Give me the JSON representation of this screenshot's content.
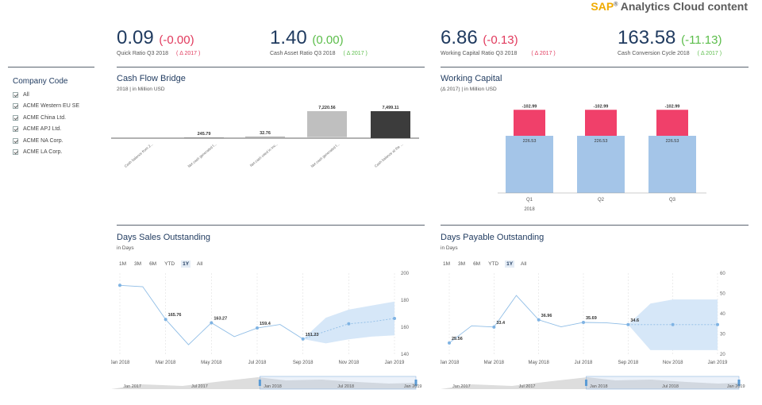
{
  "brand": {
    "sap": "SAP",
    "reg": "®",
    "rest": " Analytics Cloud content"
  },
  "kpis": {
    "quick_ratio": {
      "value": "0.09",
      "delta": "(-0.00)",
      "label": "Quick Ratio Q3 2018",
      "compare": "( Δ 2017 )"
    },
    "cash_asset_ratio": {
      "value": "1.40",
      "delta": "(0.00)",
      "label": "Cash Asset Ratio Q3 2018",
      "compare": "( Δ 2017 )"
    },
    "working_capital_ratio": {
      "value": "6.86",
      "delta": "(-0.13)",
      "label": "Working Capital Ratio Q3 2018",
      "compare": "( Δ 2017 )"
    },
    "cash_conversion_cycle": {
      "value": "163.58",
      "delta": "(-11.13)",
      "label": "Cash Conversion Cycle 2018",
      "compare": "( Δ 2017 )"
    }
  },
  "filter": {
    "title": "Company Code",
    "items": [
      "All",
      "ACME Western EU SE",
      "ACME China Ltd.",
      "ACME APJ Ltd.",
      "ACME NA Corp.",
      "ACME LA Corp."
    ]
  },
  "panels": {
    "cash_flow": {
      "title": "Cash Flow Bridge",
      "subtitle": "2018 | in Million USD"
    },
    "working_capital": {
      "title": "Working Capital",
      "subtitle": "(Δ 2017) | in Million USD"
    },
    "dso": {
      "title": "Days Sales Outstanding",
      "subtitle": "in Days"
    },
    "dpo": {
      "title": "Days Payable Outstanding",
      "subtitle": "in Days"
    }
  },
  "range_buttons": [
    "1M",
    "3M",
    "6M",
    "YTD",
    "1Y",
    "All"
  ],
  "range_active": "1Y",
  "colors": {
    "blue_bar": "#a4c5e8",
    "red_bar": "#f0406a",
    "grey_bar": "#bfbfbf",
    "dark_bar": "#3c3c3c",
    "line": "#8fbde6",
    "band": "#d6e7f8"
  },
  "chart_data": [
    {
      "id": "cash_flow_bridge",
      "type": "bar",
      "title": "Cash Flow Bridge",
      "categories": [
        "Cash balance from 2...",
        "Net cash generated f...",
        "Net cash used in inv...",
        "Net cash generated f...",
        "Cash balance at the ..."
      ],
      "values": [
        null,
        245.79,
        32.76,
        7220.56,
        7499.11
      ],
      "labels": [
        "",
        "245.79",
        "32.76",
        "7,220.56",
        "7,499.11"
      ]
    },
    {
      "id": "working_capital",
      "type": "bar",
      "title": "Working Capital",
      "categories": [
        "Q1",
        "Q2",
        "Q3"
      ],
      "category_group": "2018",
      "series": [
        {
          "name": "Working Capital",
          "values": [
            226.53,
            226.53,
            226.53
          ],
          "labels": [
            "226.53",
            "226.53",
            "226.53"
          ]
        },
        {
          "name": "Δ 2017",
          "values": [
            -102.99,
            -102.99,
            -102.99
          ],
          "labels": [
            "-102.99",
            "-102.99",
            "-102.99"
          ]
        }
      ]
    },
    {
      "id": "dso",
      "type": "line",
      "title": "Days Sales Outstanding",
      "ylim": [
        140,
        200
      ],
      "yticks": [
        "200",
        "180",
        "160",
        "140"
      ],
      "xticks": [
        "Jan 2018",
        "Mar 2018",
        "May 2018",
        "Jul 2018",
        "Sep 2018",
        "Nov 2018",
        "Jan 2019"
      ],
      "x": [
        0,
        1,
        2,
        3,
        4,
        5,
        6,
        7,
        8,
        9,
        10,
        11,
        12
      ],
      "values": [
        191,
        190,
        165.76,
        147,
        163.27,
        153,
        159.4,
        162,
        151.23,
        null,
        null,
        null,
        null
      ],
      "forecast": [
        null,
        null,
        null,
        null,
        null,
        null,
        null,
        null,
        151.23,
        157,
        162.5,
        164,
        166.5
      ],
      "band_upper": [
        null,
        null,
        null,
        null,
        null,
        null,
        null,
        null,
        151.23,
        167,
        173,
        176,
        179
      ],
      "band_lower": [
        null,
        null,
        null,
        null,
        null,
        null,
        null,
        null,
        151.23,
        148,
        151,
        153,
        154
      ],
      "data_labels": {
        "2": "165.76",
        "4": "163.27",
        "6": "159.4",
        "8": "151.23"
      },
      "navigator_ticks": [
        "Jan 2017",
        "Jul 2017",
        "Jan 2018",
        "Jul 2018",
        "Jan 2019"
      ]
    },
    {
      "id": "dpo",
      "type": "line",
      "title": "Days Payable Outstanding",
      "ylim": [
        20,
        60
      ],
      "yticks": [
        "60",
        "50",
        "40",
        "30",
        "20"
      ],
      "xticks": [
        "Jan 2018",
        "Mar 2018",
        "May 2018",
        "Jul 2018",
        "Sep 2018",
        "Nov 2018",
        "Jan 2019"
      ],
      "x": [
        0,
        1,
        2,
        3,
        4,
        5,
        6,
        7,
        8,
        9,
        10,
        11,
        12
      ],
      "values": [
        25.56,
        34,
        33.4,
        49,
        36.96,
        33.5,
        35.69,
        35.5,
        34.6,
        null,
        null,
        null,
        null
      ],
      "forecast": [
        null,
        null,
        null,
        null,
        null,
        null,
        null,
        null,
        34.6,
        34.6,
        34.6,
        34.6,
        34.6
      ],
      "band_upper": [
        null,
        null,
        null,
        null,
        null,
        null,
        null,
        null,
        34.6,
        45,
        47,
        47,
        47
      ],
      "band_lower": [
        null,
        null,
        null,
        null,
        null,
        null,
        null,
        null,
        34.6,
        22,
        22,
        22,
        22
      ],
      "data_labels": {
        "0": "25.56",
        "2": "33.4",
        "4": "36.96",
        "6": "35.69",
        "8": "34.6"
      },
      "navigator_ticks": [
        "Jan 2017",
        "Jul 2017",
        "Jan 2018",
        "Jul 2018",
        "Jan 2019"
      ]
    }
  ]
}
